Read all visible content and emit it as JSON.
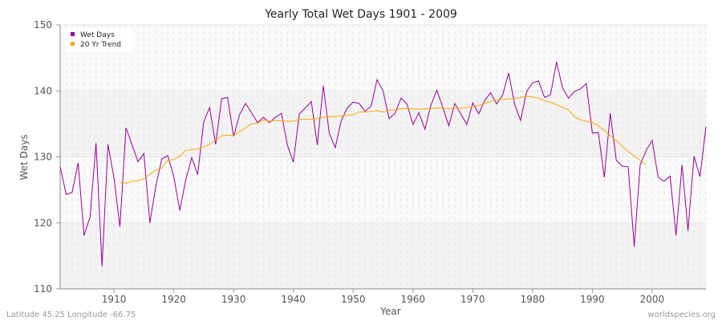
{
  "chart_data": {
    "type": "line",
    "title": "Yearly Total Wet Days 1901 - 2009",
    "xlabel": "Year",
    "ylabel": "Wet Days",
    "xlim": [
      1901,
      2009
    ],
    "ylim": [
      110,
      150
    ],
    "x_ticks": [
      1910,
      1920,
      1930,
      1940,
      1950,
      1960,
      1970,
      1980,
      1990,
      2000
    ],
    "y_ticks": [
      110,
      120,
      130,
      140,
      150
    ],
    "grid": true,
    "legend_position": "top-left",
    "series": [
      {
        "name": "Wet Days",
        "color": "#990099",
        "start_year": 1901,
        "values": [
          128.5,
          124.3,
          124.6,
          129.1,
          118.1,
          120.9,
          132.1,
          113.4,
          131.9,
          126.8,
          119.4,
          134.4,
          131.9,
          129.3,
          130.5,
          120.0,
          125.6,
          129.7,
          130.2,
          127.0,
          121.9,
          126.5,
          129.9,
          127.3,
          135.3,
          137.5,
          131.9,
          138.8,
          139.0,
          133.1,
          136.4,
          138.1,
          136.7,
          135.2,
          136.0,
          135.2,
          136.0,
          136.6,
          131.8,
          129.2,
          136.5,
          137.4,
          138.4,
          131.8,
          140.8,
          133.6,
          131.4,
          135.5,
          137.4,
          138.3,
          138.1,
          136.9,
          137.7,
          141.7,
          140.0,
          135.8,
          136.6,
          138.9,
          138.0,
          134.9,
          136.7,
          134.2,
          137.8,
          140.1,
          137.5,
          134.7,
          138.1,
          136.5,
          134.9,
          138.2,
          136.5,
          138.6,
          139.7,
          138.0,
          139.4,
          142.7,
          138.0,
          135.5,
          139.9,
          141.2,
          141.5,
          139.0,
          139.4,
          144.4,
          140.5,
          138.9,
          139.9,
          140.3,
          141.1,
          133.6,
          133.7,
          126.9,
          136.6,
          129.5,
          128.6,
          128.5,
          116.4,
          128.8,
          131.0,
          132.5,
          126.9,
          126.3,
          127.1,
          118.1,
          128.8,
          118.8,
          130.1,
          127.0,
          134.6
        ]
      },
      {
        "name": "20 Yr Trend",
        "color": "#ffa500",
        "start_year": 1911,
        "values": [
          126.1,
          126.0,
          126.3,
          126.4,
          126.7,
          127.4,
          128.0,
          128.3,
          129.5,
          129.6,
          130.1,
          131.0,
          131.1,
          131.2,
          131.5,
          131.9,
          132.5,
          133.2,
          133.3,
          133.2,
          133.8,
          134.4,
          135.0,
          135.1,
          135.6,
          135.4,
          135.5,
          135.5,
          135.4,
          135.4,
          135.7,
          135.7,
          135.7,
          135.8,
          136.0,
          136.1,
          136.1,
          136.2,
          136.3,
          136.4,
          136.8,
          136.8,
          136.9,
          137.0,
          136.8,
          137.1,
          137.1,
          137.3,
          137.3,
          137.3,
          137.2,
          137.3,
          137.3,
          137.4,
          137.4,
          137.3,
          137.4,
          137.4,
          137.5,
          137.6,
          137.8,
          138.1,
          138.4,
          138.6,
          138.7,
          138.8,
          138.8,
          139.0,
          139.2,
          139.1,
          138.9,
          138.5,
          138.3,
          137.9,
          137.5,
          137.1,
          136.1,
          135.6,
          135.4,
          135.2,
          134.7,
          134.0,
          133.2,
          132.5,
          131.6,
          130.8,
          130.1,
          129.5,
          128.8
        ]
      }
    ]
  },
  "footer": {
    "location": "Latitude 45.25 Longitude -66.75",
    "source": "worldspecies.org"
  }
}
